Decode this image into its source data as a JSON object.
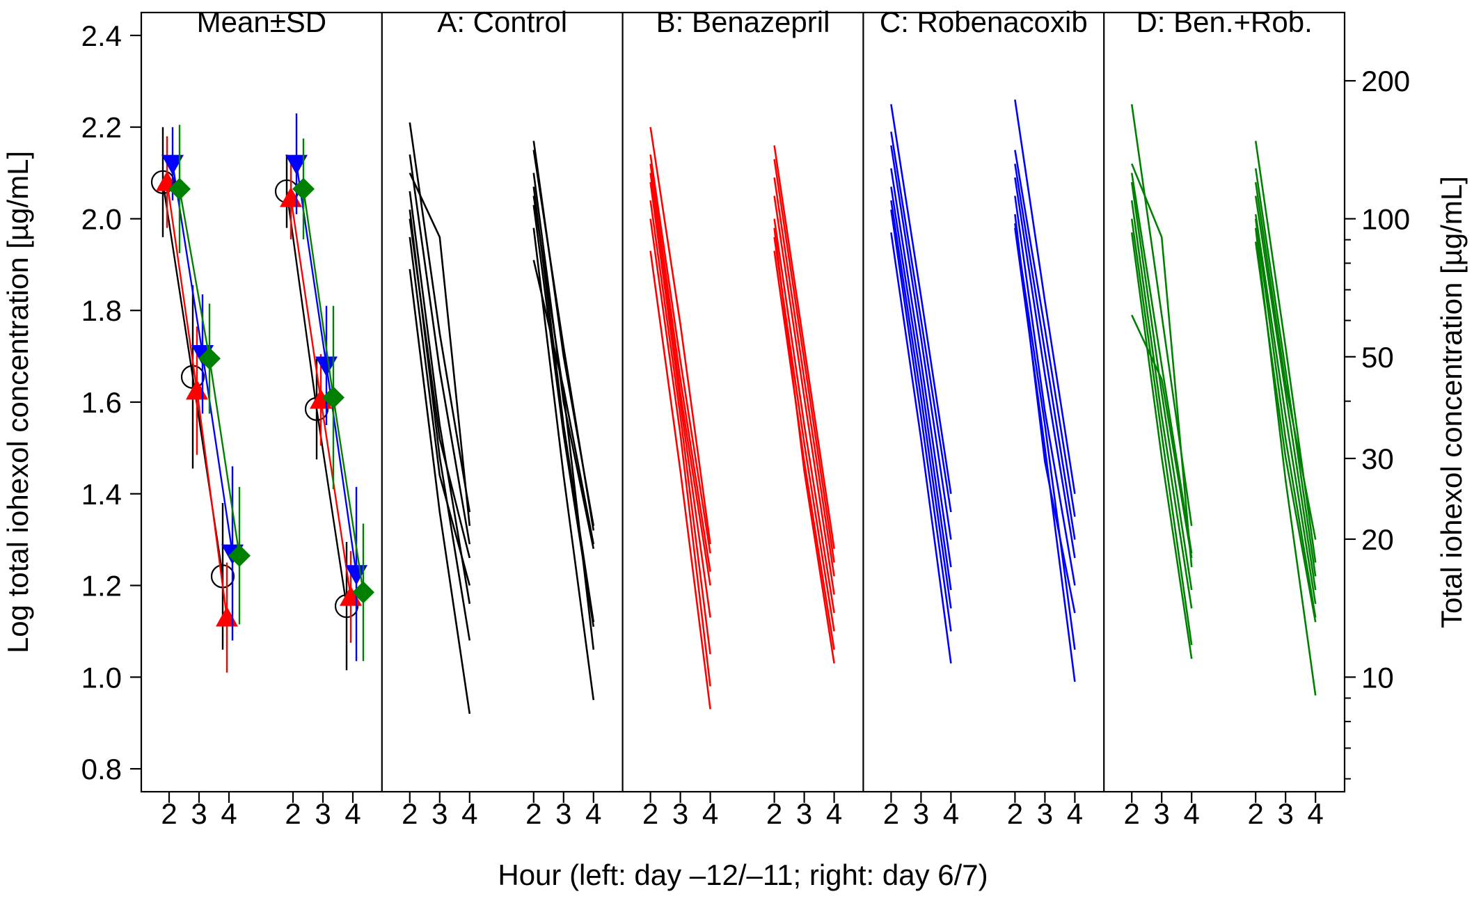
{
  "chart_data": {
    "type": "line",
    "xlabel": "Hour (left: day –12/–11; right: day 6/7)",
    "ylabel": "Log total iohexol concentration [µg/mL]",
    "ylabel_right": "Total iohexol concentration [µg/mL]",
    "ylim": [
      0.75,
      2.45
    ],
    "y_ticks": [
      "0.8",
      "1.0",
      "1.2",
      "1.4",
      "1.6",
      "1.8",
      "2.0",
      "2.2",
      "2.4"
    ],
    "y_right_ticks": [
      "10",
      "20",
      "30",
      "50",
      "100",
      "200"
    ],
    "x_tick_labels": [
      "2",
      "3",
      "4"
    ],
    "grid": false,
    "colors": {
      "A": "#000000",
      "B": "#ff0000",
      "C": "#0000ff",
      "D": "#008000"
    },
    "panels": [
      {
        "title": "Mean±SD",
        "type": "mean_sd",
        "groups": [
          {
            "group": "A",
            "marker": "circle",
            "left": {
              "x": [
                2,
                3,
                4
              ],
              "mean": [
                2.08,
                1.655,
                1.22
              ],
              "sd": [
                0.12,
                0.2,
                0.16
              ]
            },
            "right": {
              "x": [
                2,
                3,
                4
              ],
              "mean": [
                2.06,
                1.585,
                1.155
              ],
              "sd": [
                0.08,
                0.11,
                0.14
              ]
            }
          },
          {
            "group": "B",
            "marker": "triangle-up",
            "left": {
              "x": [
                2,
                3,
                4
              ],
              "mean": [
                2.08,
                1.625,
                1.13
              ],
              "sd": [
                0.1,
                0.14,
                0.12
              ]
            },
            "right": {
              "x": [
                2,
                3,
                4
              ],
              "mean": [
                2.045,
                1.605,
                1.175
              ],
              "sd": [
                0.09,
                0.1,
                0.1
              ]
            }
          },
          {
            "group": "C",
            "marker": "triangle-down",
            "left": {
              "x": [
                2,
                3,
                4
              ],
              "mean": [
                2.12,
                1.705,
                1.27
              ],
              "sd": [
                0.08,
                0.13,
                0.19
              ]
            },
            "right": {
              "x": [
                2,
                3,
                4
              ],
              "mean": [
                2.12,
                1.68,
                1.225
              ],
              "sd": [
                0.11,
                0.13,
                0.19
              ]
            }
          },
          {
            "group": "D",
            "marker": "diamond",
            "left": {
              "x": [
                2,
                3,
                4
              ],
              "mean": [
                2.065,
                1.695,
                1.265
              ],
              "sd": [
                0.14,
                0.12,
                0.15
              ]
            },
            "right": {
              "x": [
                2,
                3,
                4
              ],
              "mean": [
                2.065,
                1.61,
                1.185
              ],
              "sd": [
                0.11,
                0.2,
                0.15
              ]
            }
          }
        ]
      },
      {
        "title": "A: Control",
        "type": "individual",
        "color": "#000000",
        "left": [
          [
            2.21,
            1.75,
            1.36
          ],
          [
            2.14,
            1.67,
            1.29
          ],
          [
            2.1,
            1.96,
            1.33
          ],
          [
            2.06,
            1.55,
            1.16
          ],
          [
            2.02,
            1.48,
            1.08
          ],
          [
            1.96,
            1.44,
            1.2
          ],
          [
            1.89,
            1.36,
            0.92
          ],
          [
            2.0,
            1.52,
            1.26
          ]
        ],
        "right": [
          [
            2.17,
            1.7,
            1.33
          ],
          [
            2.15,
            1.72,
            1.32
          ],
          [
            2.1,
            1.6,
            1.28
          ],
          [
            2.07,
            1.55,
            1.12
          ],
          [
            2.05,
            1.62,
            1.06
          ],
          [
            2.03,
            1.53,
            1.11
          ],
          [
            1.98,
            1.44,
            0.95
          ],
          [
            1.91,
            1.63,
            1.29
          ]
        ]
      },
      {
        "title": "B: Benazepril",
        "type": "individual",
        "color": "#ff0000",
        "left": [
          [
            2.2,
            1.77,
            1.29
          ],
          [
            2.14,
            1.69,
            1.27
          ],
          [
            2.12,
            1.65,
            1.23
          ],
          [
            2.1,
            1.62,
            1.2
          ],
          [
            2.08,
            1.6,
            1.13
          ],
          [
            2.04,
            1.57,
            1.05
          ],
          [
            2.0,
            1.53,
            0.98
          ],
          [
            1.93,
            1.45,
            0.93
          ]
        ],
        "right": [
          [
            2.16,
            1.72,
            1.28
          ],
          [
            2.13,
            1.69,
            1.25
          ],
          [
            2.09,
            1.65,
            1.22
          ],
          [
            2.05,
            1.61,
            1.18
          ],
          [
            2.0,
            1.55,
            1.14
          ],
          [
            1.96,
            1.51,
            1.1
          ],
          [
            1.93,
            1.47,
            1.06
          ],
          [
            1.98,
            1.45,
            1.03
          ]
        ]
      },
      {
        "title": "C: Robenacoxib",
        "type": "individual",
        "color": "#0000ff",
        "left": [
          [
            2.25,
            1.83,
            1.4
          ],
          [
            2.19,
            1.78,
            1.36
          ],
          [
            2.16,
            1.74,
            1.3
          ],
          [
            2.11,
            1.69,
            1.24
          ],
          [
            2.07,
            1.65,
            1.19
          ],
          [
            2.04,
            1.61,
            1.15
          ],
          [
            2.02,
            1.57,
            1.1
          ],
          [
            1.97,
            1.52,
            1.03
          ]
        ],
        "right": [
          [
            2.26,
            1.82,
            1.4
          ],
          [
            2.15,
            1.76,
            1.35
          ],
          [
            2.12,
            1.71,
            1.3
          ],
          [
            2.09,
            1.66,
            1.26
          ],
          [
            2.05,
            1.58,
            1.2
          ],
          [
            2.01,
            1.47,
            1.14
          ],
          [
            1.99,
            1.55,
            1.06
          ],
          [
            1.98,
            1.5,
            0.99
          ]
        ]
      },
      {
        "title": "D: Ben.+Rob.",
        "type": "individual",
        "color": "#008000",
        "left": [
          [
            2.25,
            1.79,
            1.33
          ],
          [
            2.12,
            1.96,
            1.24
          ],
          [
            2.1,
            1.68,
            1.27
          ],
          [
            2.08,
            1.62,
            1.19
          ],
          [
            2.04,
            1.57,
            1.15
          ],
          [
            2.0,
            1.53,
            1.07
          ],
          [
            1.97,
            1.48,
            1.04
          ],
          [
            1.79,
            1.65,
            1.26
          ]
        ],
        "right": [
          [
            2.17,
            1.72,
            1.25
          ],
          [
            2.11,
            1.67,
            1.22
          ],
          [
            2.08,
            1.64,
            1.3
          ],
          [
            2.05,
            1.62,
            1.19
          ],
          [
            2.01,
            1.57,
            1.16
          ],
          [
            2.0,
            1.52,
            1.13
          ],
          [
            1.95,
            1.48,
            1.12
          ],
          [
            1.98,
            1.43,
            0.96
          ]
        ]
      }
    ]
  }
}
